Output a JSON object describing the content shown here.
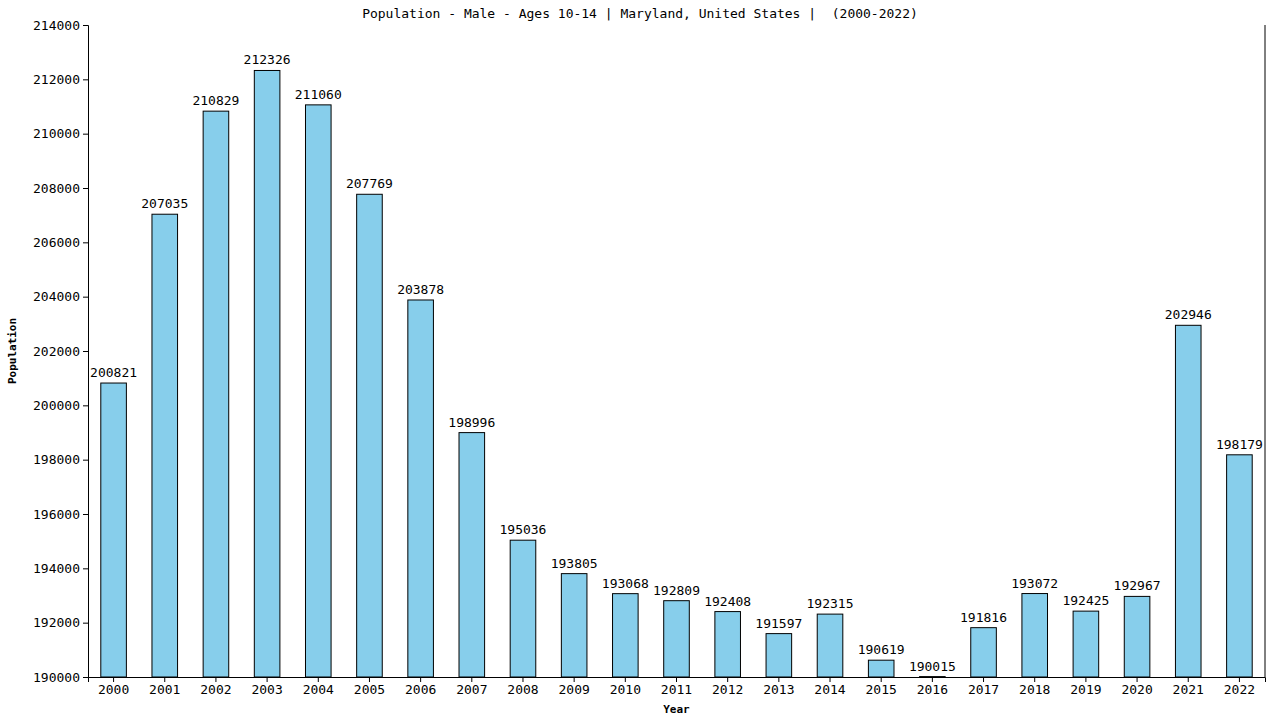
{
  "chart_data": {
    "type": "bar",
    "title": "Population - Male - Ages 10-14 | Maryland, United States |  (2000-2022)",
    "x_label": "Year",
    "y_label": "Population",
    "categories": [
      "2000",
      "2001",
      "2002",
      "2003",
      "2004",
      "2005",
      "2006",
      "2007",
      "2008",
      "2009",
      "2010",
      "2011",
      "2012",
      "2013",
      "2014",
      "2015",
      "2016",
      "2017",
      "2018",
      "2019",
      "2020",
      "2021",
      "2022"
    ],
    "values": [
      200821,
      207035,
      210829,
      212326,
      211060,
      207769,
      203878,
      198996,
      195036,
      193805,
      193068,
      192809,
      192408,
      191597,
      192315,
      190619,
      190015,
      191816,
      193072,
      192425,
      192967,
      202946,
      198179
    ],
    "color": "#87ceeb",
    "ylim": [
      190000,
      214000
    ],
    "yticks": [
      190000,
      192000,
      194000,
      196000,
      198000,
      200000,
      202000,
      204000,
      206000,
      208000,
      210000,
      212000,
      214000
    ],
    "grid": false,
    "data_labels": true
  }
}
